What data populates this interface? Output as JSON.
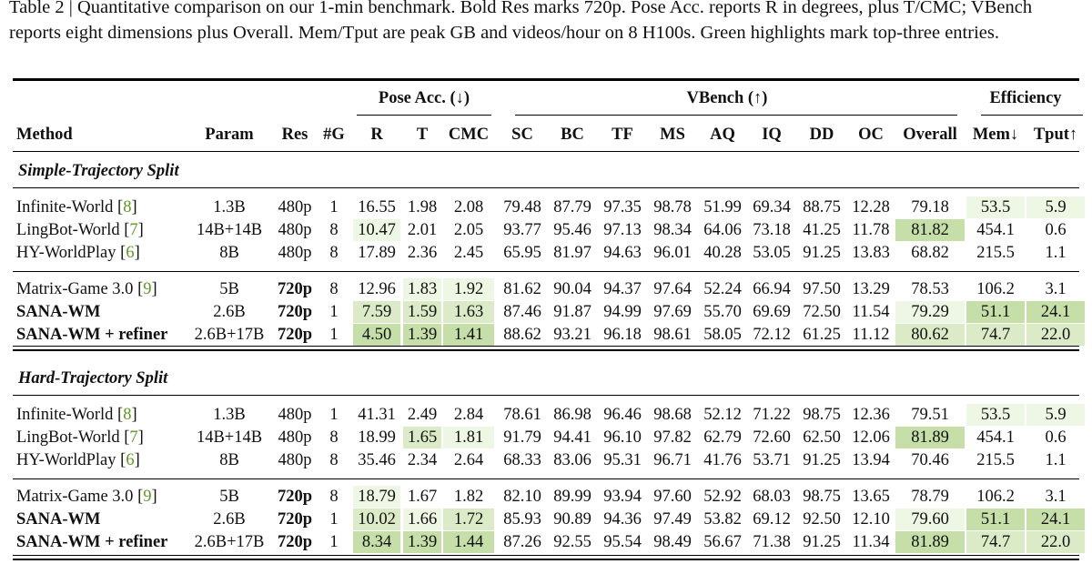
{
  "caption": "Table 2 | Quantitative comparison on our 1-min benchmark. Bold Res marks 720p. Pose Acc. reports R in degrees, plus T/CMC; VBench reports eight dimensions plus Overall. Mem/Tput are peak GB and videos/hour on 8 H100s. Green highlights mark top-three entries.",
  "groups": {
    "pose": "Pose Acc. (↓)",
    "vbench": "VBench (↑)",
    "eff": "Efficiency"
  },
  "columns": [
    "Method",
    "Param",
    "Res",
    "#G",
    "R",
    "T",
    "CMC",
    "SC",
    "BC",
    "TF",
    "MS",
    "AQ",
    "IQ",
    "DD",
    "OC",
    "Overall",
    "Mem↓",
    "Tput↑"
  ],
  "sections": [
    {
      "title": "Simple-Trajectory Split",
      "blocks": [
        [
          {
            "name": "Infinite-World",
            "cite": "8",
            "bold": false,
            "cells": [
              "1.3B",
              "480p",
              "1",
              "16.55",
              "1.98",
              "2.08",
              "79.48",
              "87.79",
              "97.35",
              "98.78",
              "51.99",
              "69.34",
              "88.75",
              "12.28",
              "79.18",
              "53.5",
              "5.9"
            ]
          },
          {
            "name": "LingBot-World",
            "cite": "7",
            "bold": false,
            "cells": [
              "14B+14B",
              "480p",
              "8",
              "10.47",
              "2.01",
              "2.05",
              "93.77",
              "95.46",
              "97.13",
              "98.34",
              "64.06",
              "73.18",
              "41.25",
              "11.78",
              "81.82",
              "454.1",
              "0.6"
            ]
          },
          {
            "name": "HY-WorldPlay",
            "cite": "6",
            "bold": false,
            "cells": [
              "8B",
              "480p",
              "8",
              "17.89",
              "2.36",
              "2.45",
              "65.95",
              "81.97",
              "94.63",
              "96.01",
              "40.28",
              "53.05",
              "91.25",
              "13.83",
              "68.82",
              "215.5",
              "1.1"
            ]
          }
        ],
        [
          {
            "name": "Matrix-Game 3.0",
            "cite": "9",
            "bold": false,
            "cells": [
              "5B",
              "720p",
              "8",
              "12.96",
              "1.83",
              "1.92",
              "81.62",
              "90.04",
              "94.37",
              "97.64",
              "52.24",
              "66.94",
              "97.50",
              "13.29",
              "78.53",
              "106.2",
              "3.1"
            ]
          },
          {
            "name": "SANA-WM",
            "cite": "",
            "bold": true,
            "cells": [
              "2.6B",
              "720p",
              "1",
              "7.59",
              "1.59",
              "1.63",
              "87.46",
              "91.87",
              "94.99",
              "97.69",
              "55.70",
              "69.69",
              "72.50",
              "11.54",
              "79.29",
              "51.1",
              "24.1"
            ]
          },
          {
            "name": "SANA-WM + refiner",
            "cite": "",
            "bold": true,
            "cells": [
              "2.6B+17B",
              "720p",
              "1",
              "4.50",
              "1.39",
              "1.41",
              "88.62",
              "93.21",
              "96.18",
              "98.61",
              "58.05",
              "72.12",
              "61.25",
              "11.12",
              "80.62",
              "74.7",
              "22.0"
            ]
          }
        ]
      ]
    },
    {
      "title": "Hard-Trajectory Split",
      "blocks": [
        [
          {
            "name": "Infinite-World",
            "cite": "8",
            "bold": false,
            "cells": [
              "1.3B",
              "480p",
              "1",
              "41.31",
              "2.49",
              "2.84",
              "78.61",
              "86.98",
              "96.46",
              "98.68",
              "52.12",
              "71.22",
              "98.75",
              "12.36",
              "79.51",
              "53.5",
              "5.9"
            ]
          },
          {
            "name": "LingBot-World",
            "cite": "7",
            "bold": false,
            "cells": [
              "14B+14B",
              "480p",
              "8",
              "18.99",
              "1.65",
              "1.81",
              "91.79",
              "94.41",
              "96.10",
              "97.82",
              "62.79",
              "72.60",
              "62.50",
              "12.06",
              "81.89",
              "454.1",
              "0.6"
            ]
          },
          {
            "name": "HY-WorldPlay",
            "cite": "6",
            "bold": false,
            "cells": [
              "8B",
              "480p",
              "8",
              "35.46",
              "2.34",
              "2.64",
              "68.33",
              "83.06",
              "95.31",
              "96.71",
              "41.76",
              "53.71",
              "91.25",
              "13.94",
              "70.46",
              "215.5",
              "1.1"
            ]
          }
        ],
        [
          {
            "name": "Matrix-Game 3.0",
            "cite": "9",
            "bold": false,
            "cells": [
              "5B",
              "720p",
              "8",
              "18.79",
              "1.67",
              "1.82",
              "82.10",
              "89.99",
              "93.94",
              "97.60",
              "52.92",
              "68.03",
              "98.75",
              "13.65",
              "78.79",
              "106.2",
              "3.1"
            ]
          },
          {
            "name": "SANA-WM",
            "cite": "",
            "bold": true,
            "cells": [
              "2.6B",
              "720p",
              "1",
              "10.02",
              "1.66",
              "1.72",
              "85.93",
              "90.89",
              "94.36",
              "97.49",
              "53.82",
              "69.12",
              "92.50",
              "12.10",
              "79.60",
              "51.1",
              "24.1"
            ]
          },
          {
            "name": "SANA-WM + refiner",
            "cite": "",
            "bold": true,
            "cells": [
              "2.6B+17B",
              "720p",
              "1",
              "8.34",
              "1.39",
              "1.44",
              "87.26",
              "92.55",
              "95.54",
              "98.49",
              "56.67",
              "71.38",
              "91.25",
              "11.34",
              "81.89",
              "74.7",
              "22.0"
            ]
          }
        ]
      ]
    }
  ],
  "highlights": [
    {
      "row": "s0b0r0",
      "col": 15,
      "shade": "g3"
    },
    {
      "row": "s0b0r0",
      "col": 16,
      "shade": "g3"
    },
    {
      "row": "s0b0r1",
      "col": 3,
      "shade": "g3"
    },
    {
      "row": "s0b0r1",
      "col": 14,
      "shade": "g1"
    },
    {
      "row": "s0b1r0",
      "col": 4,
      "shade": "g3"
    },
    {
      "row": "s0b1r0",
      "col": 5,
      "shade": "g3"
    },
    {
      "row": "s0b1r1",
      "col": 3,
      "shade": "g2"
    },
    {
      "row": "s0b1r1",
      "col": 4,
      "shade": "g2"
    },
    {
      "row": "s0b1r1",
      "col": 5,
      "shade": "g2"
    },
    {
      "row": "s0b1r1",
      "col": 14,
      "shade": "g3"
    },
    {
      "row": "s0b1r1",
      "col": 15,
      "shade": "g1"
    },
    {
      "row": "s0b1r1",
      "col": 16,
      "shade": "g1"
    },
    {
      "row": "s0b1r2",
      "col": 3,
      "shade": "g1"
    },
    {
      "row": "s0b1r2",
      "col": 4,
      "shade": "g1"
    },
    {
      "row": "s0b1r2",
      "col": 5,
      "shade": "g1"
    },
    {
      "row": "s0b1r2",
      "col": 14,
      "shade": "g2"
    },
    {
      "row": "s0b1r2",
      "col": 15,
      "shade": "g2"
    },
    {
      "row": "s0b1r2",
      "col": 16,
      "shade": "g2"
    },
    {
      "row": "s1b0r0",
      "col": 15,
      "shade": "g3"
    },
    {
      "row": "s1b0r0",
      "col": 16,
      "shade": "g3"
    },
    {
      "row": "s1b0r1",
      "col": 4,
      "shade": "g2"
    },
    {
      "row": "s1b0r1",
      "col": 5,
      "shade": "g3"
    },
    {
      "row": "s1b0r1",
      "col": 14,
      "shade": "g1"
    },
    {
      "row": "s1b1r0",
      "col": 3,
      "shade": "g3"
    },
    {
      "row": "s1b1r1",
      "col": 3,
      "shade": "g2"
    },
    {
      "row": "s1b1r1",
      "col": 4,
      "shade": "g3"
    },
    {
      "row": "s1b1r1",
      "col": 5,
      "shade": "g2"
    },
    {
      "row": "s1b1r1",
      "col": 14,
      "shade": "g3"
    },
    {
      "row": "s1b1r1",
      "col": 15,
      "shade": "g1"
    },
    {
      "row": "s1b1r1",
      "col": 16,
      "shade": "g1"
    },
    {
      "row": "s1b1r2",
      "col": 3,
      "shade": "g1"
    },
    {
      "row": "s1b1r2",
      "col": 4,
      "shade": "g1"
    },
    {
      "row": "s1b1r2",
      "col": 5,
      "shade": "g1"
    },
    {
      "row": "s1b1r2",
      "col": 14,
      "shade": "g1"
    },
    {
      "row": "s1b1r2",
      "col": 15,
      "shade": "g2"
    },
    {
      "row": "s1b1r2",
      "col": 16,
      "shade": "g2"
    }
  ]
}
